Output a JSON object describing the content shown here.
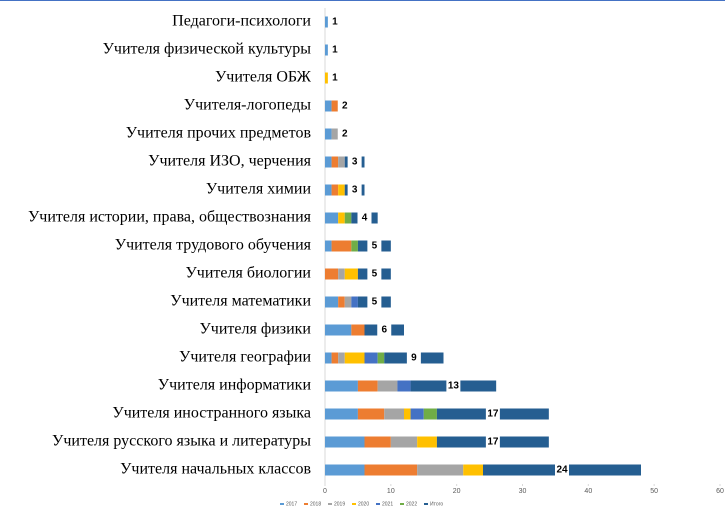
{
  "chart_data": {
    "type": "stacked_barh",
    "categories": [
      "Педагоги-психологи",
      "Учителя физической культуры",
      "Учителя ОБЖ",
      "Учителя-логопеды",
      "Учителя прочих предметов",
      "Учителя ИЗО, черчения",
      "Учителя химии",
      "Учителя истории, права, обществознания",
      "Учителя трудового обучения",
      "Учителя биологии",
      "Учителя математики",
      "Учителя физики",
      "Учителя географии",
      "Учителя информатики",
      "Учителя иностранного языка",
      "Учителя русского языка и литературы",
      "Учителя начальных классов"
    ],
    "series": [
      {
        "name": "2017",
        "color": "#5b9bd5",
        "values": [
          1,
          1,
          0,
          1,
          1,
          1,
          1,
          2,
          1,
          0,
          2,
          4,
          1,
          5,
          5,
          6,
          6
        ]
      },
      {
        "name": "2018",
        "color": "#ed7d31",
        "values": [
          0,
          0,
          0,
          1,
          0,
          1,
          1,
          0,
          3,
          2,
          1,
          2,
          1,
          3,
          4,
          4,
          8
        ]
      },
      {
        "name": "2019",
        "color": "#a5a5a5",
        "values": [
          0,
          0,
          0,
          0,
          1,
          1,
          0,
          0,
          0,
          1,
          1,
          0,
          1,
          3,
          3,
          4,
          7
        ]
      },
      {
        "name": "2020",
        "color": "#ffc000",
        "values": [
          0,
          0,
          1,
          0,
          0,
          0,
          1,
          1,
          0,
          2,
          0,
          0,
          3,
          0,
          1,
          3,
          3
        ]
      },
      {
        "name": "2021",
        "color": "#4472c4",
        "values": [
          0,
          0,
          0,
          0,
          0,
          0,
          0,
          0,
          0,
          0,
          1,
          0,
          2,
          2,
          2,
          0,
          0
        ]
      },
      {
        "name": "2022",
        "color": "#70ad47",
        "values": [
          0,
          0,
          0,
          0,
          0,
          0,
          0,
          1,
          1,
          0,
          0,
          0,
          1,
          0,
          2,
          0,
          0
        ]
      },
      {
        "name": "Итого",
        "color": "#255e91",
        "values": [
          1,
          1,
          1,
          2,
          2,
          3,
          3,
          4,
          5,
          5,
          5,
          6,
          9,
          13,
          17,
          17,
          24
        ]
      }
    ],
    "xlim": [
      0,
      60
    ],
    "xticks": [
      0,
      10,
      20,
      30,
      40,
      50,
      60
    ],
    "grid": false,
    "legend": "bottom"
  }
}
